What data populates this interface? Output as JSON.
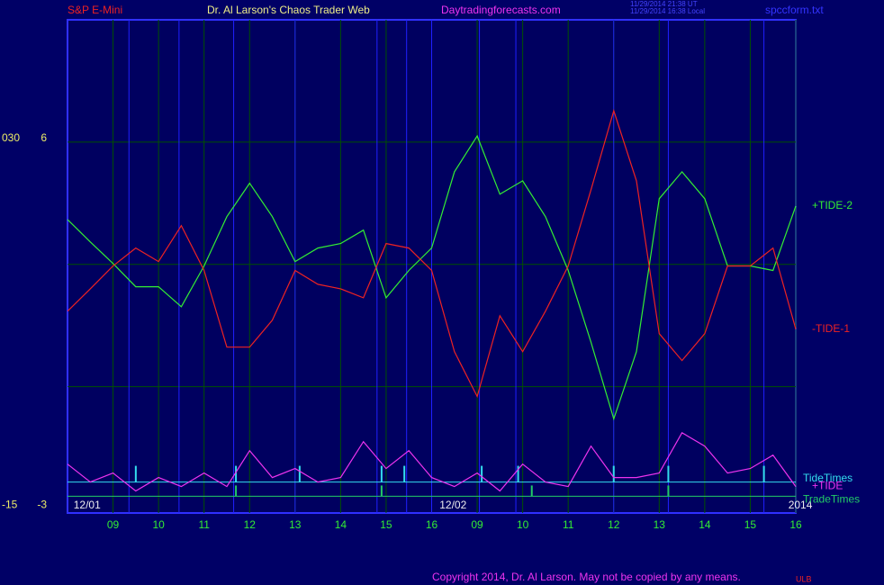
{
  "header": {
    "instrument": "S&P E-Mini",
    "site_title": "Dr. Al Larson's Chaos Trader Web",
    "site_url": "Daytradingforecasts.com",
    "time_ut": "11/29/2014 21:38 UT",
    "time_local": "11/29/2014 16:38 Local",
    "file": "spccform.txt"
  },
  "footer": {
    "copyright": "Copyright 2014, Dr. Al Larson. May not be copied by any means.",
    "mark": "ULB"
  },
  "chart_data": {
    "type": "line",
    "background": "#000060",
    "border_color": "#3030ff",
    "grid_color": "#005000",
    "time_line_color": "#2020ff",
    "x": [
      0,
      0.5,
      1,
      1.5,
      2,
      2.5,
      3,
      3.5,
      4,
      4.5,
      5,
      5.5,
      6,
      6.5,
      7,
      7.5,
      8,
      8.5,
      9,
      9.5,
      10,
      10.5,
      11,
      11.5,
      12,
      12.5,
      13,
      13.5,
      14,
      14.5,
      15,
      15.5,
      16
    ],
    "xlim": [
      0,
      16
    ],
    "xticks": [
      {
        "value": 1,
        "label": "09"
      },
      {
        "value": 2,
        "label": "10"
      },
      {
        "value": 3,
        "label": "11"
      },
      {
        "value": 4,
        "label": "12"
      },
      {
        "value": 5,
        "label": "13"
      },
      {
        "value": 6,
        "label": "14"
      },
      {
        "value": 7,
        "label": "15"
      },
      {
        "value": 8,
        "label": "16"
      },
      {
        "value": 9,
        "label": "09"
      },
      {
        "value": 10,
        "label": "10"
      },
      {
        "value": 11,
        "label": "11"
      },
      {
        "value": 12,
        "label": "12"
      },
      {
        "value": 13,
        "label": "13"
      },
      {
        "value": 14,
        "label": "14"
      },
      {
        "value": 15,
        "label": "15"
      },
      {
        "value": 16,
        "label": "16"
      }
    ],
    "ylim": [
      -3.1,
      9
    ],
    "yticks": [
      6,
      -3
    ],
    "ygrid": [
      6,
      3,
      0
    ],
    "y2lim": [
      -15.5,
      45
    ],
    "y2ticks": [
      {
        "value": 30,
        "label": "030"
      },
      -15
    ],
    "date_labels": [
      {
        "x": 0.43,
        "label": "12/01"
      },
      {
        "x": 8.47,
        "label": "12/02"
      },
      {
        "x": 16.1,
        "label": "2014"
      }
    ],
    "time_lines": [
      1.35,
      2.45,
      3.65,
      5.0,
      6.8,
      7.45,
      8.0,
      9.05,
      9.85,
      12.0,
      13.2,
      15.3
    ],
    "series": [
      {
        "name": "+TIDE-2",
        "color": "#33ee33",
        "values": [
          4.1,
          3.55,
          3.02,
          2.45,
          2.45,
          1.96,
          2.96,
          4.17,
          4.99,
          4.17,
          3.07,
          3.4,
          3.51,
          3.84,
          2.18,
          2.85,
          3.4,
          5.27,
          6.15,
          4.72,
          5.05,
          4.17,
          2.85,
          1.09,
          -0.79,
          0.86,
          4.61,
          5.27,
          4.61,
          2.96,
          2.96,
          2.85,
          4.43
        ]
      },
      {
        "name": "-TIDE-1",
        "color": "#ee2222",
        "values": [
          1.85,
          2.4,
          2.96,
          3.4,
          3.07,
          3.95,
          2.85,
          0.97,
          0.97,
          1.63,
          2.85,
          2.51,
          2.4,
          2.18,
          3.51,
          3.4,
          2.85,
          0.86,
          -0.24,
          1.74,
          0.86,
          1.85,
          2.96,
          4.83,
          6.77,
          5.05,
          1.3,
          0.64,
          1.3,
          2.96,
          2.96,
          3.4,
          1.41
        ]
      },
      {
        "name": "+TIDE",
        "color": "#ee33ee",
        "values": [
          -1.9,
          -2.34,
          -2.12,
          -2.56,
          -2.23,
          -2.45,
          -2.12,
          -2.45,
          -1.57,
          -2.23,
          -2.01,
          -2.34,
          -2.23,
          -1.35,
          -2.01,
          -1.57,
          -2.23,
          -2.45,
          -2.12,
          -2.56,
          -1.9,
          -2.34,
          -2.45,
          -1.46,
          -2.23,
          -2.23,
          -2.12,
          -1.13,
          -1.46,
          -2.12,
          -2.01,
          -1.68,
          -2.45
        ]
      }
    ],
    "levels": [
      {
        "name": "TideTimes",
        "color": "#33ddee",
        "value": -2.34,
        "spikes": [
          1.5,
          3.7,
          5.1,
          6.9,
          7.4,
          9.1,
          9.9,
          12.0,
          13.2,
          15.3
        ]
      },
      {
        "name": "TradeTimes",
        "color": "#22cc66",
        "value": -2.69,
        "spikes": [
          3.7,
          6.9,
          10.2,
          13.2
        ]
      }
    ]
  }
}
